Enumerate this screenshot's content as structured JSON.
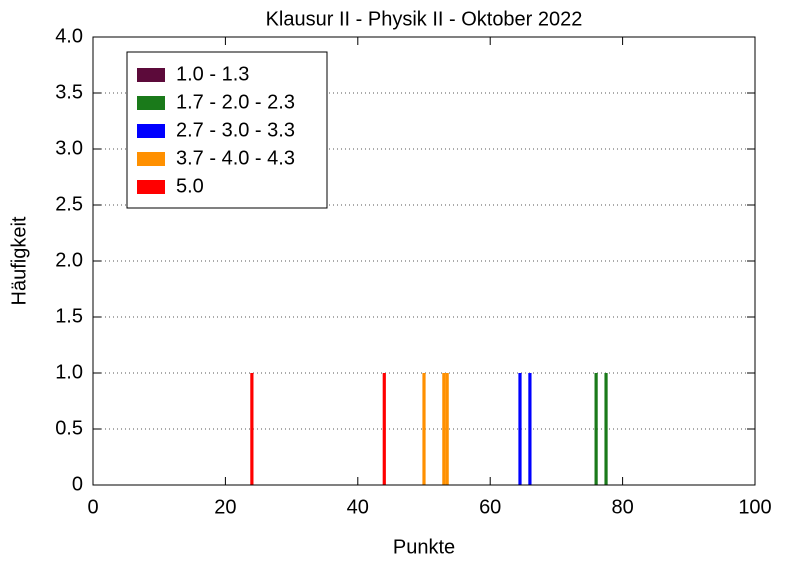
{
  "chart_data": {
    "type": "bar",
    "title": "Klausur II - Physik II - Oktober 2022",
    "xlabel": "Punkte",
    "ylabel": "Häufigkeit",
    "xlim": [
      0,
      100
    ],
    "xticks": [
      0,
      20,
      40,
      60,
      80,
      100
    ],
    "ylim": [
      0,
      4.0
    ],
    "yticks": [
      0,
      {
        "value": 0.5,
        "label": "0.5"
      },
      {
        "value": 1,
        "label": "1.0"
      },
      {
        "value": 1.5,
        "label": "1.5"
      },
      {
        "value": 2,
        "label": "2.0"
      },
      {
        "value": 2.5,
        "label": "2.5"
      },
      {
        "value": 3,
        "label": "3.0"
      },
      {
        "value": 3.5,
        "label": "3.5"
      },
      {
        "value": 4,
        "label": "4.0"
      }
    ],
    "grid": true,
    "legend": "upper left",
    "series": [
      {
        "name": "1.0 - 1.3",
        "color": "#5c0a3a",
        "x": [],
        "values": []
      },
      {
        "name": "1.7 - 2.0 - 2.3",
        "color": "#1a7a1a",
        "x": [
          76,
          77.5
        ],
        "values": [
          1,
          1
        ]
      },
      {
        "name": "2.7 - 3.0 - 3.3",
        "color": "#0000ff",
        "x": [
          64.5,
          66
        ],
        "values": [
          1,
          1
        ]
      },
      {
        "name": "3.7 - 4.0 - 4.3",
        "color": "#ff9000",
        "x": [
          50,
          53,
          53.5
        ],
        "values": [
          1,
          1,
          1
        ]
      },
      {
        "name": "5.0",
        "color": "#ff0000",
        "x": [
          24,
          44
        ],
        "values": [
          1,
          1
        ]
      }
    ]
  }
}
